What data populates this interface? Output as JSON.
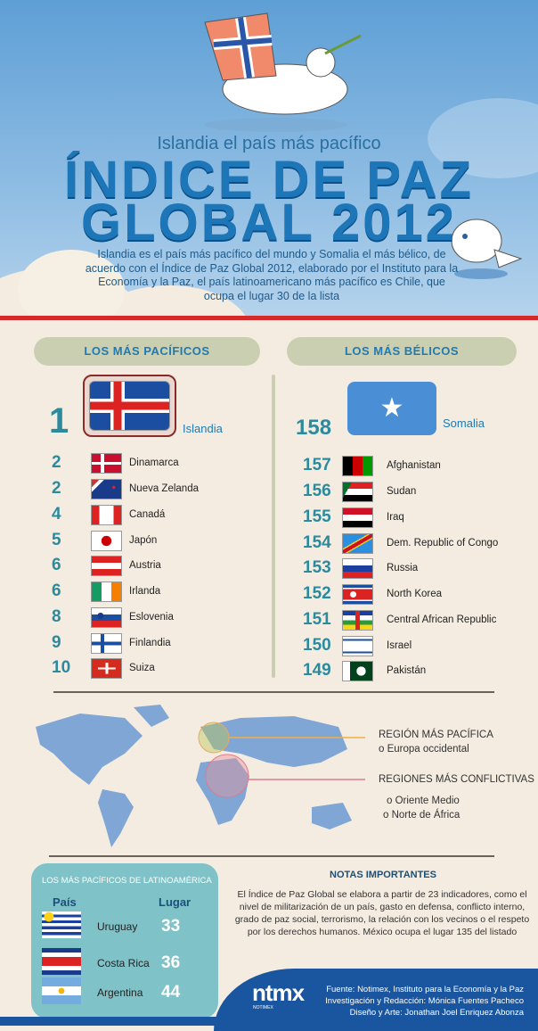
{
  "header": {
    "subtitle": "Islandia el país más pacífico",
    "title_line1": "ÍNDICE DE PAZ",
    "title_line2": "GLOBAL 2012",
    "intro": "Islandia es el país más pacífico del mundo y Somalia el más bélico, de acuerdo con el Índice de Paz Global 2012, elaborado por el Instituto para la Economía y la Paz, el país latinoamericano más pacífico es Chile, que ocupa el lugar 30 de la lista"
  },
  "colors": {
    "sky": "#5e9fd6",
    "title": "#1c76b8",
    "rank": "#2c8a9e",
    "accent_red": "#d42a2a",
    "panel": "#7fc3c8",
    "footer": "#1a55a0"
  },
  "peaceful": {
    "heading": "LOS MÁS PACÍFICOS",
    "top": {
      "rank": "1",
      "name": "Islandia",
      "flag": "iceland"
    },
    "items": [
      {
        "rank": "2",
        "name": "Dinamarca",
        "flag": "denmark"
      },
      {
        "rank": "2",
        "name": "Nueva Zelanda",
        "flag": "nz"
      },
      {
        "rank": "4",
        "name": "Canadá",
        "flag": "canada"
      },
      {
        "rank": "5",
        "name": "Japón",
        "flag": "japan"
      },
      {
        "rank": "6",
        "name": "Austria",
        "flag": "austria"
      },
      {
        "rank": "6",
        "name": "Irlanda",
        "flag": "ireland"
      },
      {
        "rank": "8",
        "name": "Eslovenia",
        "flag": "slovenia"
      },
      {
        "rank": "9",
        "name": "Finlandia",
        "flag": "finland"
      },
      {
        "rank": "10",
        "name": "Suiza",
        "flag": "swiss"
      }
    ]
  },
  "warlike": {
    "heading": "LOS MÁS BÉLICOS",
    "top": {
      "rank": "158",
      "name": "Somalia",
      "flag": "somalia"
    },
    "items": [
      {
        "rank": "157",
        "name": "Afghanistan",
        "flag": "afghan"
      },
      {
        "rank": "156",
        "name": "Sudan",
        "flag": "sudan"
      },
      {
        "rank": "155",
        "name": "Iraq",
        "flag": "iraq"
      },
      {
        "rank": "154",
        "name": "Dem. Republic of Congo",
        "flag": "drc"
      },
      {
        "rank": "153",
        "name": "Russia",
        "flag": "russia"
      },
      {
        "rank": "152",
        "name": "North Korea",
        "flag": "nkorea"
      },
      {
        "rank": "151",
        "name": "Central African Republic",
        "flag": "car"
      },
      {
        "rank": "150",
        "name": "Israel",
        "flag": "israel"
      },
      {
        "rank": "149",
        "name": "Pakistán",
        "flag": "pakistan"
      }
    ]
  },
  "map": {
    "peaceful_label": "REGIÓN MÁS PACÍFICA",
    "peaceful_region": "o Europa occidental",
    "conflict_label": "REGIONES MÁS CONFLICTIVAS",
    "conflict_regions": [
      "o Oriente Medio",
      "o Norte de África"
    ]
  },
  "latam": {
    "title": "LOS MÁS PACÍFICOS DE LATINOAMÉRICA",
    "col_country": "País",
    "col_rank": "Lugar",
    "rows": [
      {
        "name": "Uruguay",
        "rank": "33",
        "flag": "uruguay"
      },
      {
        "name": "Costa Rica",
        "rank": "36",
        "flag": "costarica"
      },
      {
        "name": "Argentina",
        "rank": "44",
        "flag": "argentina"
      }
    ]
  },
  "notes": {
    "title": "NOTAS IMPORTANTES",
    "text": "El Índice de Paz Global se elabora a partir de 23 indicadores, como el nivel de militarización de un país, gasto en defensa, conflicto interno, grado de paz social, terrorismo, la relación con los vecinos o el respeto por los derechos humanos. México ocupa el lugar 135 del listado"
  },
  "footer": {
    "logo": "ntmx",
    "logo_sub": "NOTIMEX",
    "credits": [
      "Fuente: Notimex, Instituto para la Economía y la Paz",
      "Investigación y Redacción: Mónica Fuentes Pacheco",
      "Diseño y Arte: Jonathan Joel Enriquez Abonza"
    ]
  }
}
